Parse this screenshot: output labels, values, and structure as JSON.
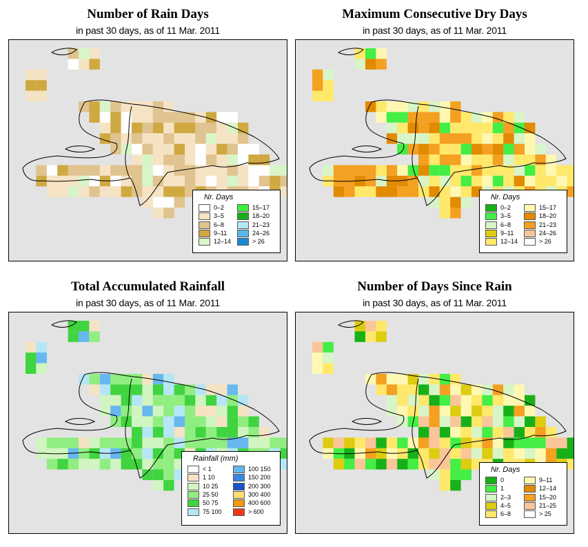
{
  "panels": [
    {
      "title": "Number of Rain Days",
      "subtitle": "in past 30 days, as of  11 Mar. 2011",
      "legend_title": "Nr. Days",
      "legend_items": [
        {
          "label": "0–2",
          "color": "#ffffff"
        },
        {
          "label": "3–5",
          "color": "#f5e3c4"
        },
        {
          "label": "6–8",
          "color": "#e0c38e"
        },
        {
          "label": "9–11",
          "color": "#cfa840"
        },
        {
          "label": "12–14",
          "color": "#d8f5c8"
        },
        {
          "label": "15–17",
          "color": "#3cf040"
        },
        {
          "label": "18–20",
          "color": "#18b018"
        },
        {
          "label": "21–23",
          "color": "#b7e6f6"
        },
        {
          "label": "24–26",
          "color": "#5ab8ec"
        },
        {
          "label": "> 26",
          "color": "#1a8ad8"
        }
      ]
    },
    {
      "title": "Maximum Consecutive Dry Days",
      "subtitle": "in past 30 days, as of  11 Mar. 2011",
      "legend_title": "Nr. Days",
      "legend_items": [
        {
          "label": "0–2",
          "color": "#18b018"
        },
        {
          "label": "3–5",
          "color": "#44ee44"
        },
        {
          "label": "6–8",
          "color": "#d8f5c8"
        },
        {
          "label": "9–11",
          "color": "#ddcc10"
        },
        {
          "label": "12–14",
          "color": "#ffe86a"
        },
        {
          "label": "15–17",
          "color": "#fff8b0"
        },
        {
          "label": "18–20",
          "color": "#e28a00"
        },
        {
          "label": "21–23",
          "color": "#f4a020"
        },
        {
          "label": "24–26",
          "color": "#fbc59a"
        },
        {
          "label": "> 26",
          "color": "#ffffff"
        }
      ]
    },
    {
      "title": "Total Accumulated Rainfall",
      "subtitle": "in past 30 days, as of  11 Mar. 2011",
      "legend_title": "Rainfall (mm)",
      "legend_items": [
        {
          "label": "< 1",
          "color": "#ffffff"
        },
        {
          "label": "1    10",
          "color": "#f5e3c4"
        },
        {
          "label": "10    25",
          "color": "#d0f5c0"
        },
        {
          "label": "25    50",
          "color": "#90ee80"
        },
        {
          "label": "50    75",
          "color": "#40d440"
        },
        {
          "label": "75  100",
          "color": "#b5e6f6"
        },
        {
          "label": "100  150",
          "color": "#66b8ee"
        },
        {
          "label": "150  200",
          "color": "#3a86e4"
        },
        {
          "label": "200  300",
          "color": "#1a52cc"
        },
        {
          "label": "300  400",
          "color": "#ffe070"
        },
        {
          "label": "400  600",
          "color": "#f29a10"
        },
        {
          "label": "> 600",
          "color": "#f03818"
        }
      ]
    },
    {
      "title": "Number of Days Since Rain",
      "subtitle": "in past 30 days, as of  11 Mar. 2011",
      "legend_title": "Nr. Days",
      "legend_items": [
        {
          "label": "0",
          "color": "#18b018"
        },
        {
          "label": "1",
          "color": "#44ee44"
        },
        {
          "label": "2–3",
          "color": "#d8f5c8"
        },
        {
          "label": "4–5",
          "color": "#ddcc10"
        },
        {
          "label": "6–8",
          "color": "#ffe86a"
        },
        {
          "label": "9–11",
          "color": "#fff8b0"
        },
        {
          "label": "12–14",
          "color": "#e28a00"
        },
        {
          "label": "15–20",
          "color": "#f4a020"
        },
        {
          "label": "21–25",
          "color": "#fbc59a"
        },
        {
          "label": "> 25",
          "color": "#ffffff"
        }
      ]
    }
  ]
}
